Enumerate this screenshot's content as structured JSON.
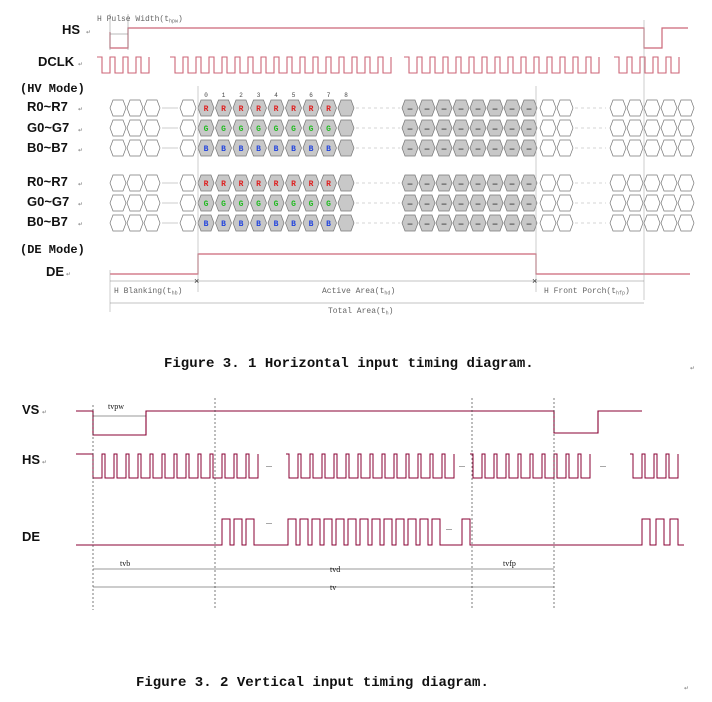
{
  "figure1": {
    "caption": "Figure 3. 1 Horizontal input timing diagram.",
    "signals": {
      "hs": "HS",
      "dclk": "DCLK",
      "r": "R0~R7",
      "g": "G0~G7",
      "b": "B0~B7",
      "de": "DE"
    },
    "modes": {
      "hv": "(HV Mode)",
      "de": "(DE Mode)"
    },
    "pulse_width_label": "H Pulse Width(t",
    "pulse_width_sub": "hpw",
    "pixel_indices": [
      "0",
      "1",
      "2",
      "3",
      "4",
      "5",
      "6",
      "7",
      "8"
    ],
    "cell_letters": {
      "r": "R",
      "g": "G",
      "b": "B",
      "blank": "—"
    },
    "intervals": {
      "blanking": "H Blanking(t",
      "blanking_sub": "hb",
      "active": "Active Area(t",
      "active_sub": "hd",
      "front_porch": "H Front Porch(t",
      "front_porch_sub": "hfp",
      "total": "Total Area(t",
      "total_sub": "h",
      "close": ")"
    },
    "line_end_mark": "↵",
    "colors": {
      "waveform": "#cc6677",
      "cell_fill": "#c8c8c8",
      "red": "#dd2222",
      "green": "#22bb22",
      "blue": "#2244dd"
    }
  },
  "figure2": {
    "caption": "Figure 3. 2 Vertical input timing diagram.",
    "signals": {
      "vs": "VS",
      "hs": "HS",
      "de": "DE"
    },
    "labels": {
      "tvpw": "tvpw",
      "tvb": "tvb",
      "tvd": "tvd",
      "tvfp": "tvfp",
      "tv": "tv"
    },
    "colors": {
      "waveform": "#880033"
    }
  }
}
